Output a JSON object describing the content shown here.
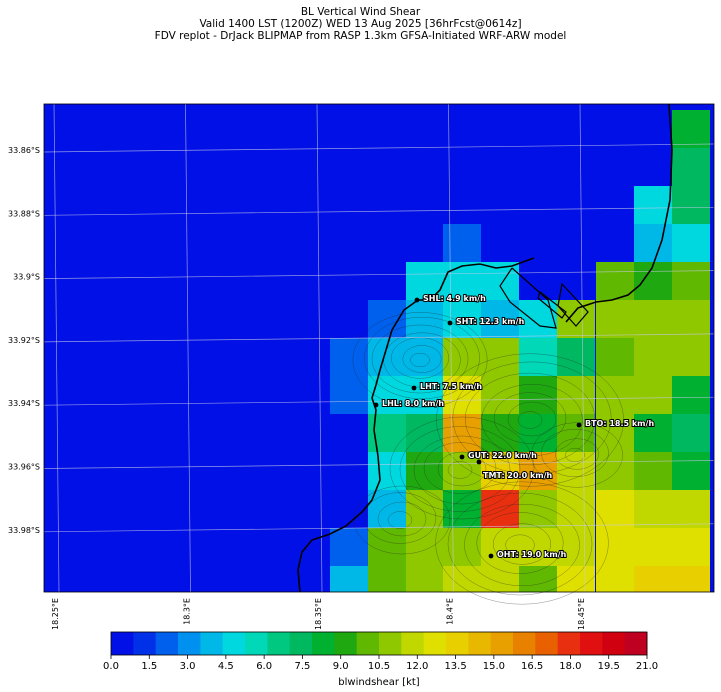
{
  "titles": {
    "line1": "BL Vertical Wind Shear",
    "line2": "Valid 1400 LST (1200Z) WED 13 Aug 2025 [36hrFcst@0614z]",
    "line3": "FDV replot - DrJack BLIPMAP from RASP 1.3km GFSA-Initiated WRF-ARW model"
  },
  "map": {
    "lat_labels": [
      {
        "label": "33.86°S",
        "lat": -33.86
      },
      {
        "label": "33.88°S",
        "lat": -33.88
      },
      {
        "label": "33.9°S",
        "lat": -33.9
      },
      {
        "label": "33.92°S",
        "lat": -33.92
      },
      {
        "label": "33.94°S",
        "lat": -33.94
      },
      {
        "label": "33.96°S",
        "lat": -33.96
      },
      {
        "label": "33.98°S",
        "lat": -33.98
      }
    ],
    "lon_labels": [
      {
        "label": "18.25°E",
        "lon": 18.25
      },
      {
        "label": "18.3°E",
        "lon": 18.3
      },
      {
        "label": "18.35°E",
        "lon": 18.35
      },
      {
        "label": "18.4°E",
        "lon": 18.4
      },
      {
        "label": "18.45°E",
        "lon": 18.45
      }
    ],
    "stations": [
      {
        "code": "SHL",
        "label": "SHL: 4.9 km/h",
        "value": 4.9
      },
      {
        "code": "SHT",
        "label": "SHT: 12.3 km/h",
        "value": 12.3
      },
      {
        "code": "LHL",
        "label": "LHL: 8.0 km/h",
        "value": 8.0
      },
      {
        "code": "LHT",
        "label": "LHT: 7.5 km/h",
        "value": 7.5
      },
      {
        "code": "BTO",
        "label": "BTO: 18.5 km/h",
        "value": 18.5
      },
      {
        "code": "GUT",
        "label": "GUT: 22.0 km/h",
        "value": 22.0
      },
      {
        "code": "TMT",
        "label": "TMT: 20.0 km/h",
        "value": 20.0
      },
      {
        "code": "OHT",
        "label": "OHT: 19.0 km/h",
        "value": 19.0
      }
    ]
  },
  "colorbar": {
    "label": "blwindshear [kt]",
    "tick_labels": [
      "0.0",
      "1.5",
      "3.0",
      "4.5",
      "6.0",
      "7.5",
      "9.0",
      "10.5",
      "12.0",
      "13.5",
      "15.0",
      "16.5",
      "18.0",
      "19.5",
      "21.0"
    ],
    "colors": [
      "#0010e6",
      "#0030e8",
      "#0060ee",
      "#0090f0",
      "#00b8e8",
      "#00d8e0",
      "#00d8b8",
      "#00c880",
      "#00b860",
      "#00b030",
      "#20a810",
      "#60b800",
      "#90c800",
      "#c0d800",
      "#e0e000",
      "#e8d000",
      "#e8b800",
      "#e8a000",
      "#e88000",
      "#e86000",
      "#e83010",
      "#e01010",
      "#d00010",
      "#c00020"
    ]
  }
}
